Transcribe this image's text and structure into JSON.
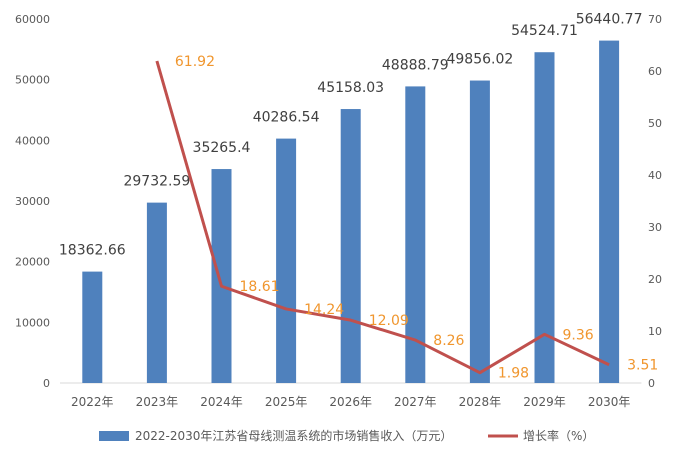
{
  "chart_data": {
    "type": "bar",
    "categories": [
      "2022年",
      "2023年",
      "2024年",
      "2025年",
      "2026年",
      "2027年",
      "2028年",
      "2029年",
      "2030年"
    ],
    "series": [
      {
        "name": "2022-2030年江苏省母线测温系统的市场销售收入（万元）",
        "type": "bar",
        "axis": "left",
        "color": "#4f81bd",
        "values": [
          18362.66,
          29732.59,
          35265.4,
          40286.54,
          45158.03,
          48888.79,
          49856.02,
          54524.71,
          56440.77
        ],
        "labels": [
          "18362.66",
          "29732.59",
          "35265.4",
          "40286.54",
          "45158.03",
          "48888.79",
          "49856.02",
          "54524.71",
          "56440.77"
        ]
      },
      {
        "name": "增长率（%）",
        "type": "line",
        "axis": "right",
        "color": "#c0504d",
        "label_color": "#f0962e",
        "values": [
          null,
          61.92,
          18.61,
          14.24,
          12.09,
          8.26,
          1.98,
          9.36,
          3.51
        ],
        "labels": [
          "",
          "61.92",
          "18.61",
          "14.24",
          "12.09",
          "8.26",
          "1.98",
          "9.36",
          "3.51"
        ]
      }
    ],
    "y_left": {
      "min": 0,
      "max": 60000,
      "ticks": [
        "0",
        "10000",
        "20000",
        "30000",
        "40000",
        "50000",
        "60000"
      ]
    },
    "y_right": {
      "min": 0,
      "max": 70,
      "ticks": [
        "0",
        "10",
        "20",
        "30",
        "40",
        "50",
        "60",
        "70"
      ]
    },
    "grid": false,
    "legend_position": "bottom",
    "axis_text_color": "#595959"
  }
}
